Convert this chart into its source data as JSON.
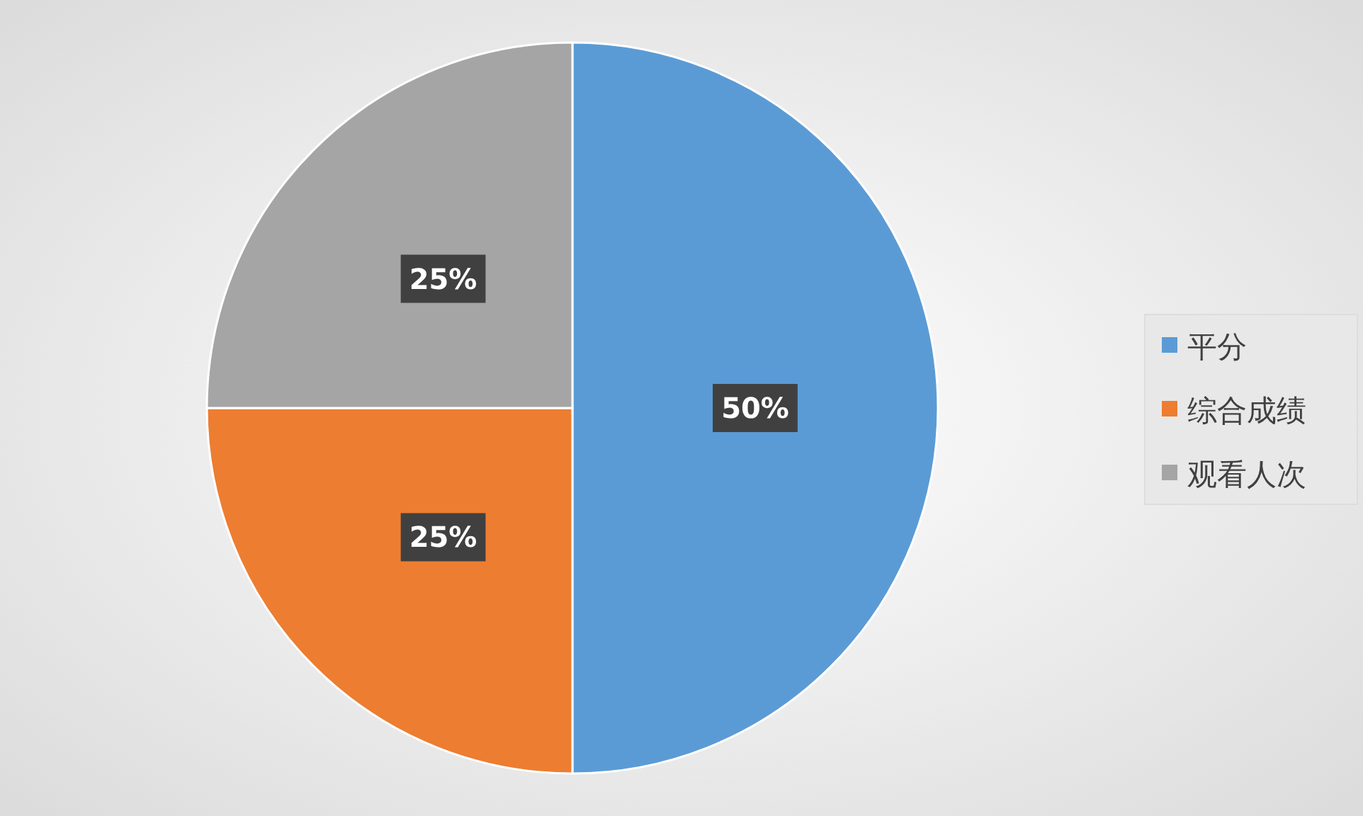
{
  "chart_data": {
    "type": "pie",
    "categories": [
      "平分",
      "综合成绩",
      "观看人次"
    ],
    "values": [
      50,
      25,
      25
    ],
    "colors": [
      "#5b9bd5",
      "#ed7d31",
      "#a5a5a5"
    ],
    "value_labels": [
      "50%",
      "25%",
      "25%"
    ],
    "legend": "right"
  }
}
